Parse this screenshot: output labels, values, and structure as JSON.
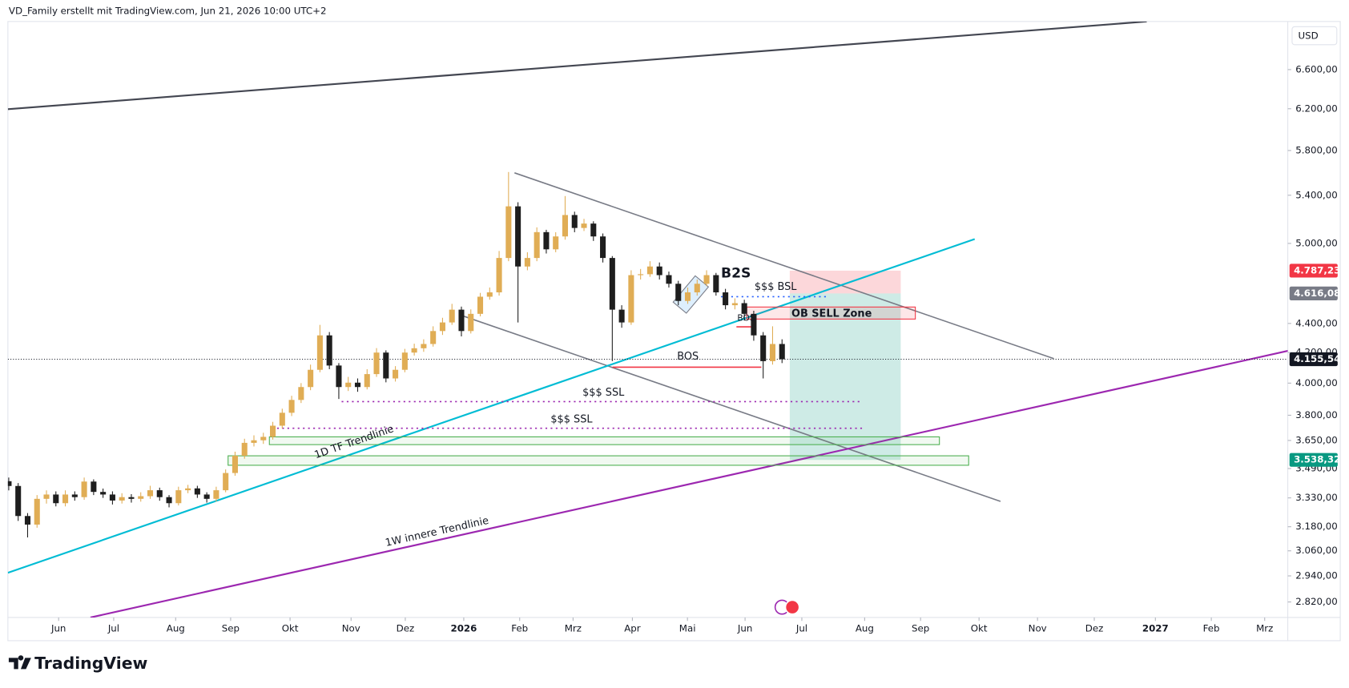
{
  "chart_data": {
    "type": "candlestick",
    "title": "VD_Family erstellt mit TradingView.com, Jun 21, 2026 10:00 UTC+2",
    "currency": "USD",
    "brand": "TradingView",
    "up_color": "#e0ad55",
    "down_color": "#1e1e1e",
    "log_scale": true,
    "grid": false,
    "open": [
      3420,
      3394,
      3235,
      3191,
      3325,
      3348,
      3302,
      3348,
      3334,
      3418,
      3362,
      3348,
      3316,
      3334,
      3325,
      3339,
      3371,
      3334,
      3302,
      3371,
      3381,
      3348,
      3325,
      3371,
      3465,
      3562,
      3636,
      3651,
      3671,
      3737,
      3815,
      3894,
      3975,
      4086,
      4317,
      4114,
      3975,
      4003,
      3975,
      4058,
      4200,
      4030,
      4086,
      4200,
      4229,
      4258,
      4347,
      4407,
      4498,
      4347,
      4468,
      4592,
      4624,
      4885,
      5305,
      4819,
      4885,
      5091,
      4953,
      5056,
      5232,
      5125,
      5161,
      5056,
      4885,
      4498,
      4407,
      4753,
      4760,
      4819,
      4753,
      4688,
      4561,
      4624,
      4688,
      4753,
      4624,
      4530,
      4545,
      4468,
      4317,
      4143,
      4258
    ],
    "high": [
      3440,
      3410,
      3250,
      3345,
      3370,
      3365,
      3370,
      3365,
      3440,
      3430,
      3380,
      3365,
      3355,
      3350,
      3360,
      3395,
      3385,
      3345,
      3390,
      3400,
      3395,
      3360,
      3390,
      3485,
      3585,
      3660,
      3680,
      3695,
      3760,
      3840,
      3920,
      4000,
      4120,
      4390,
      4340,
      4130,
      4040,
      4030,
      4090,
      4230,
      4215,
      4110,
      4225,
      4260,
      4290,
      4380,
      4440,
      4540,
      4520,
      4500,
      4620,
      4660,
      4940,
      5604,
      5340,
      4930,
      5130,
      5110,
      5090,
      5393,
      5260,
      5200,
      5180,
      5080,
      4900,
      4530,
      4790,
      4800,
      4860,
      4850,
      4780,
      4710,
      4660,
      4720,
      4790,
      4770,
      4650,
      4580,
      4570,
      4490,
      4340,
      4380,
      4290
    ],
    "low": [
      3370,
      3210,
      3126,
      3175,
      3300,
      3285,
      3285,
      3315,
      3320,
      3345,
      3330,
      3295,
      3300,
      3305,
      3310,
      3325,
      3315,
      3280,
      3290,
      3355,
      3330,
      3305,
      3310,
      3360,
      3450,
      3545,
      3615,
      3630,
      3655,
      3720,
      3795,
      3875,
      3955,
      4070,
      4090,
      3900,
      3950,
      3945,
      3960,
      4040,
      4005,
      4010,
      4070,
      4180,
      4205,
      4240,
      4320,
      4390,
      4310,
      4330,
      4450,
      4570,
      4600,
      4860,
      4407,
      4790,
      4860,
      4920,
      4930,
      5030,
      5090,
      5100,
      5020,
      4850,
      4143,
      4370,
      4390,
      4720,
      4740,
      4720,
      4660,
      4530,
      4540,
      4600,
      4670,
      4600,
      4500,
      4500,
      4420,
      4280,
      4030,
      4120,
      4130
    ],
    "close": [
      3394,
      3235,
      3191,
      3325,
      3348,
      3302,
      3348,
      3334,
      3418,
      3362,
      3348,
      3316,
      3334,
      3325,
      3339,
      3371,
      3334,
      3302,
      3371,
      3381,
      3348,
      3325,
      3371,
      3465,
      3562,
      3636,
      3651,
      3671,
      3737,
      3815,
      3894,
      3975,
      4086,
      4317,
      4114,
      3975,
      4003,
      3975,
      4058,
      4200,
      4030,
      4086,
      4200,
      4229,
      4258,
      4347,
      4407,
      4498,
      4347,
      4468,
      4592,
      4624,
      4885,
      5305,
      4819,
      4885,
      5091,
      4953,
      5056,
      5232,
      5125,
      5161,
      5056,
      4885,
      4498,
      4407,
      4753,
      4760,
      4819,
      4753,
      4688,
      4561,
      4624,
      4688,
      4753,
      4624,
      4530,
      4545,
      4468,
      4317,
      4143,
      4258,
      4155.54
    ],
    "xlim": [
      0,
      135.63
    ],
    "xticks": [
      {
        "value": 5.29,
        "label": "Jun"
      },
      {
        "value": 11.13,
        "label": "Jul"
      },
      {
        "value": 17.7,
        "label": "Aug"
      },
      {
        "value": 23.53,
        "label": "Sep"
      },
      {
        "value": 29.83,
        "label": "Okt"
      },
      {
        "value": 36.3,
        "label": "Nov"
      },
      {
        "value": 42.05,
        "label": "Dez"
      },
      {
        "value": 48.25,
        "label": "2026"
      },
      {
        "value": 54.18,
        "label": "Feb"
      },
      {
        "value": 59.84,
        "label": "Mrz"
      },
      {
        "value": 66.13,
        "label": "Apr"
      },
      {
        "value": 71.97,
        "label": "Mai"
      },
      {
        "value": 78.08,
        "label": "Jun"
      },
      {
        "value": 84.1,
        "label": "Jul"
      },
      {
        "value": 90.76,
        "label": "Aug"
      },
      {
        "value": 96.69,
        "label": "Sep"
      },
      {
        "value": 102.89,
        "label": "Okt"
      },
      {
        "value": 109.09,
        "label": "Nov"
      },
      {
        "value": 115.11,
        "label": "Dez"
      },
      {
        "value": 121.59,
        "label": "2027"
      },
      {
        "value": 127.52,
        "label": "Feb"
      },
      {
        "value": 133.18,
        "label": "Mrz"
      }
    ],
    "ylim": [
      2751,
      7127
    ],
    "yticks": [
      {
        "value": 6600,
        "label": "6.600,00"
      },
      {
        "value": 6200,
        "label": "6.200,00"
      },
      {
        "value": 5800,
        "label": "5.800,00"
      },
      {
        "value": 5400,
        "label": "5.400,00"
      },
      {
        "value": 5000,
        "label": "5.000,00"
      },
      {
        "value": 4400,
        "label": "4.400,00"
      },
      {
        "value": 4200,
        "label": "4.200,00"
      },
      {
        "value": 4000,
        "label": "4.000,00"
      },
      {
        "value": 3800,
        "label": "3.800,00"
      },
      {
        "value": 3650,
        "label": "3.650,00"
      },
      {
        "value": 3490,
        "label": "3.490,00"
      },
      {
        "value": 3330,
        "label": "3.330,00"
      },
      {
        "value": 3180,
        "label": "3.180,00"
      },
      {
        "value": 3060,
        "label": "3.060,00"
      },
      {
        "value": 2940,
        "label": "2.940,00"
      },
      {
        "value": 2820,
        "label": "2.820,00"
      }
    ],
    "price_labels": [
      {
        "value": 4787.23,
        "label": "4.787,23",
        "color": "#f23645"
      },
      {
        "value": 4616.08,
        "label": "4.616,08",
        "color": "#787b86"
      },
      {
        "value": 4155.54,
        "label": "4.155,54",
        "color": "#131722"
      },
      {
        "value": 3538.32,
        "label": "3.538,32",
        "color": "#089981"
      }
    ],
    "annotations": [
      "B2S",
      "$$$ BSL",
      "OB SELL Zone",
      "BOS",
      "BOS",
      "$$$ SSL",
      "$$$ SSL",
      "1D TF Trendlinie",
      "1W innere Trendlinie"
    ]
  }
}
